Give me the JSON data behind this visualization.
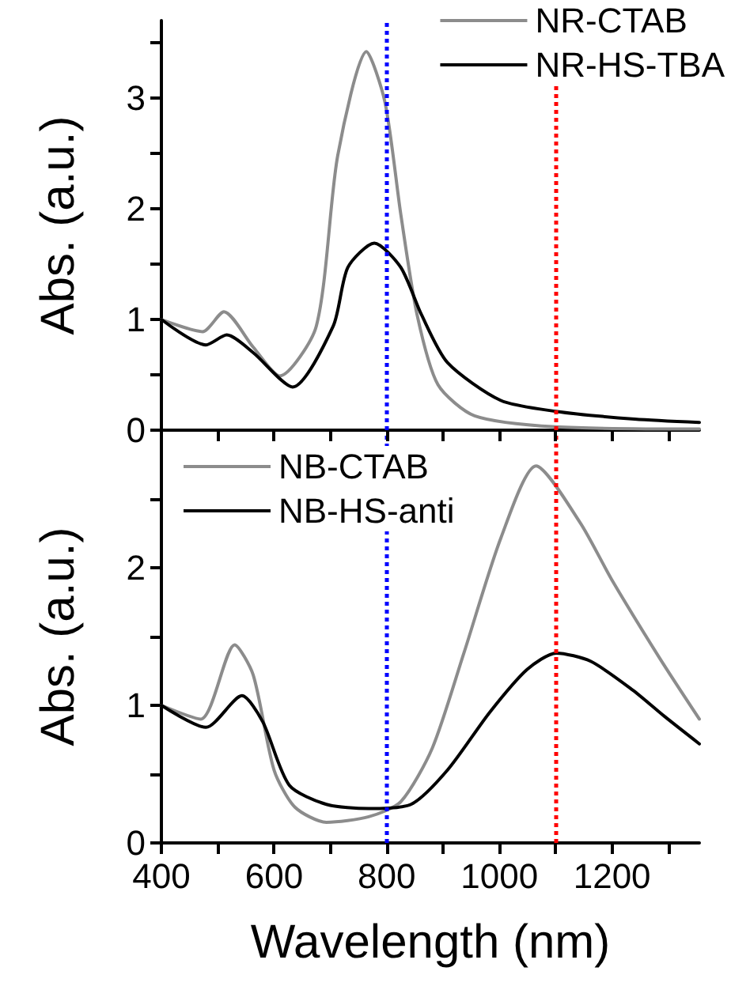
{
  "chart_data": [
    {
      "type": "line",
      "ylabel": "Abs. (a.u.)",
      "xlim": [
        400,
        1355
      ],
      "ylim": [
        0,
        3.7
      ],
      "xticks": [
        {
          "value": 400,
          "label": null
        },
        {
          "value": 500,
          "label": null
        },
        {
          "value": 600,
          "label": null
        },
        {
          "value": 700,
          "label": null
        },
        {
          "value": 800,
          "label": null
        },
        {
          "value": 900,
          "label": null
        },
        {
          "value": 1000,
          "label": null
        },
        {
          "value": 1100,
          "label": null
        },
        {
          "value": 1200,
          "label": null
        },
        {
          "value": 1300,
          "label": null
        }
      ],
      "yticks": [
        0,
        {
          "value": 0.5,
          "label": null
        },
        1,
        {
          "value": 1.5,
          "label": null
        },
        2,
        {
          "value": 2.5,
          "label": null
        },
        3,
        {
          "value": 3.5,
          "label": null
        }
      ],
      "tick_labels": "y",
      "legend": "top right",
      "marker": "none",
      "line_style": "solid",
      "series": [
        {
          "name": "NR-CTAB",
          "color": "#8c8c8c",
          "x": [
            400,
            473,
            511,
            563,
            610,
            675,
            713,
            764,
            797,
            825,
            854,
            891,
            956,
            1100,
            1355
          ],
          "values": [
            1.0,
            0.89,
            1.07,
            0.75,
            0.49,
            0.94,
            2.48,
            3.42,
            2.96,
            1.95,
            1.04,
            0.41,
            0.13,
            0.03,
            0.01
          ]
        },
        {
          "name": "NR-HS-TBA",
          "color": "#000000",
          "x": [
            400,
            479,
            516,
            563,
            633,
            705,
            731,
            778,
            825,
            862,
            908,
            1002,
            1100,
            1240,
            1355
          ],
          "values": [
            1.0,
            0.77,
            0.86,
            0.7,
            0.39,
            0.94,
            1.47,
            1.69,
            1.47,
            1.04,
            0.61,
            0.27,
            0.17,
            0.1,
            0.07
          ]
        }
      ],
      "ref_lines": [
        {
          "axis": "x",
          "value": 800,
          "color": "#0000ff",
          "line_style": "dotted"
        },
        {
          "axis": "x",
          "value": 1100,
          "color": "#ff0000",
          "line_style": "dotted"
        }
      ]
    },
    {
      "type": "line",
      "xlabel": "Wavelength (nm)",
      "ylabel": "Abs. (a.u.)",
      "xlim": [
        400,
        1355
      ],
      "ylim": [
        0,
        3
      ],
      "xticks": [
        400,
        {
          "value": 500,
          "label": null
        },
        600,
        {
          "value": 700,
          "label": null
        },
        800,
        {
          "value": 900,
          "label": null
        },
        1000,
        {
          "value": 1100,
          "label": null
        },
        1200,
        {
          "value": 1300,
          "label": null
        }
      ],
      "yticks": [
        0,
        {
          "value": 0.5,
          "label": null
        },
        1,
        {
          "value": 1.5,
          "label": null
        },
        2,
        {
          "value": 2.5,
          "label": null
        }
      ],
      "legend": "top left",
      "marker": "none",
      "line_style": "solid",
      "series": [
        {
          "name": "NB-CTAB",
          "color": "#8c8c8c",
          "x": [
            400,
            470,
            530,
            563,
            600,
            637,
            693,
            768,
            825,
            881,
            937,
            1003,
            1065,
            1143,
            1200,
            1285,
            1355
          ],
          "values": [
            1.0,
            0.9,
            1.44,
            1.22,
            0.53,
            0.26,
            0.15,
            0.19,
            0.3,
            0.69,
            1.38,
            2.22,
            2.74,
            2.33,
            1.91,
            1.34,
            0.9
          ]
        },
        {
          "name": "NB-HS-anti",
          "color": "#000000",
          "x": [
            400,
            479,
            543,
            580,
            627,
            693,
            768,
            843,
            908,
            983,
            1049,
            1101,
            1162,
            1237,
            1293,
            1355
          ],
          "values": [
            1.0,
            0.84,
            1.07,
            0.88,
            0.42,
            0.28,
            0.25,
            0.28,
            0.53,
            0.95,
            1.26,
            1.38,
            1.32,
            1.11,
            0.92,
            0.72
          ]
        }
      ],
      "ref_lines": [
        {
          "axis": "x",
          "value": 800,
          "color": "#0000ff",
          "line_style": "dotted"
        },
        {
          "axis": "x",
          "value": 1100,
          "color": "#ff0000",
          "line_style": "dotted"
        }
      ]
    }
  ]
}
